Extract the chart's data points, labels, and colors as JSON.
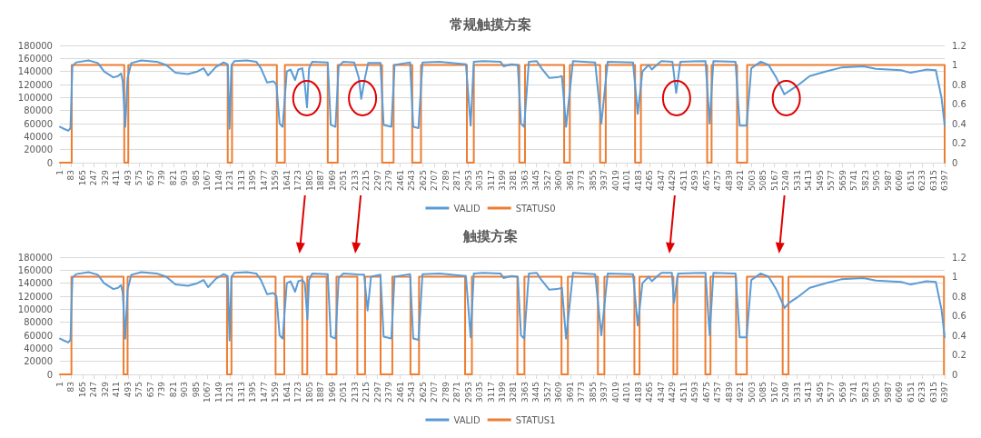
{
  "chart_data": [
    {
      "type": "line",
      "title": "常规触摸方案",
      "xlim": [
        1,
        6397
      ],
      "xticks": [
        1,
        83,
        165,
        247,
        329,
        411,
        493,
        575,
        657,
        739,
        821,
        903,
        985,
        1067,
        1149,
        1231,
        1313,
        1395,
        1477,
        1559,
        1641,
        1723,
        1805,
        1887,
        1969,
        2051,
        2133,
        2215,
        2297,
        2379,
        2461,
        2543,
        2625,
        2707,
        2789,
        2871,
        2953,
        3035,
        3117,
        3199,
        3281,
        3363,
        3445,
        3527,
        3609,
        3691,
        3773,
        3855,
        3937,
        4019,
        4101,
        4183,
        4265,
        4347,
        4429,
        4511,
        4593,
        4675,
        4757,
        4839,
        4921,
        5003,
        5085,
        5167,
        5249,
        5331,
        5413,
        5495,
        5577,
        5659,
        5741,
        5823,
        5905,
        5987,
        6069,
        6151,
        6233,
        6315,
        6397
      ],
      "ylim": [
        0,
        180000
      ],
      "yticks": [
        0,
        20000,
        40000,
        60000,
        80000,
        100000,
        120000,
        140000,
        160000,
        180000
      ],
      "y2lim": [
        0,
        1.2
      ],
      "y2ticks": [
        0,
        0.2,
        0.4,
        0.6,
        0.8,
        1,
        1.2
      ],
      "grid": "y",
      "legend": "bottom",
      "marker": "none",
      "line_style": "solid",
      "series": [
        {
          "name": "VALID",
          "color": "#5b9bd5",
          "type": "line",
          "x": [
            1,
            30,
            61,
            77,
            91,
            118,
            208,
            275,
            320,
            387,
            421,
            443,
            455,
            473,
            490,
            517,
            589,
            700,
            769,
            836,
            926,
            994,
            1039,
            1072,
            1129,
            1185,
            1214,
            1227,
            1241,
            1263,
            1353,
            1420,
            1454,
            1499,
            1544,
            1566,
            1589,
            1611,
            1641,
            1668,
            1701,
            1724,
            1753,
            1771,
            1787,
            1802,
            1825,
            1937,
            1959,
            1993,
            2016,
            2049,
            2128,
            2162,
            2179,
            2206,
            2229,
            2318,
            2341,
            2397,
            2420,
            2532,
            2555,
            2593,
            2622,
            2745,
            2936,
            2970,
            2993,
            3060,
            3186,
            3208,
            3265,
            3311,
            3334,
            3357,
            3391,
            3448,
            3482,
            3539,
            3596,
            3630,
            3660,
            3710,
            3870,
            3915,
            3961,
            4144,
            4178,
            4212,
            4257,
            4280,
            4315,
            4349,
            4429,
            4456,
            4486,
            4668,
            4698,
            4725,
            4885,
            4915,
            4965,
            4999,
            5067,
            5124,
            5181,
            5238,
            5273,
            5330,
            5421,
            5535,
            5649,
            5809,
            5900,
            6082,
            6151,
            6265,
            6333,
            6374,
            6397
          ],
          "values": [
            55000,
            52000,
            49000,
            53000,
            148000,
            154000,
            157000,
            153000,
            140000,
            131000,
            133000,
            137000,
            125000,
            55000,
            130000,
            153000,
            157000,
            155000,
            150000,
            138000,
            136000,
            140000,
            145000,
            134000,
            147000,
            154000,
            151000,
            52000,
            150000,
            156000,
            157000,
            155000,
            145000,
            123000,
            125000,
            120000,
            60000,
            55000,
            140000,
            143000,
            127000,
            143000,
            145000,
            120000,
            85000,
            145000,
            155000,
            154000,
            58000,
            55000,
            148000,
            155000,
            154000,
            130000,
            98000,
            130000,
            153000,
            153000,
            58000,
            55000,
            150000,
            154000,
            55000,
            53000,
            154000,
            155000,
            151000,
            57000,
            155000,
            156000,
            155000,
            148000,
            151000,
            150000,
            60000,
            55000,
            155000,
            156000,
            145000,
            130000,
            131000,
            133000,
            55000,
            156000,
            154000,
            60000,
            155000,
            154000,
            75000,
            140000,
            150000,
            143000,
            150000,
            156000,
            155000,
            107000,
            155000,
            156000,
            60000,
            156000,
            155000,
            57000,
            57000,
            145000,
            155000,
            150000,
            130000,
            105000,
            110000,
            118000,
            133000,
            140000,
            146000,
            148000,
            144000,
            142000,
            138000,
            143000,
            142000,
            100000,
            57000
          ]
        },
        {
          "name": "STATUS0",
          "color": "#ed7d31",
          "type": "step",
          "axis": "y2",
          "x": [
            1,
            86,
            466,
            495,
            1214,
            1245,
            1569,
            1627,
            1937,
            2009,
            2330,
            2413,
            2548,
            2611,
            2943,
            2993,
            3322,
            3363,
            3646,
            3687,
            3906,
            3947,
            4159,
            4201,
            4680,
            4712,
            4896,
            4969,
            6397
          ],
          "values": [
            0,
            1,
            0,
            1,
            0,
            1,
            0,
            1,
            0,
            1,
            0,
            1,
            0,
            1,
            0,
            1,
            0,
            1,
            0,
            1,
            0,
            1,
            0,
            1,
            0,
            1,
            0,
            1,
            0
          ]
        }
      ]
    },
    {
      "type": "line",
      "title": "触摸方案",
      "xlim": [
        1,
        6397
      ],
      "xticks": [
        1,
        83,
        165,
        247,
        329,
        411,
        493,
        575,
        657,
        739,
        821,
        903,
        985,
        1067,
        1149,
        1231,
        1313,
        1395,
        1477,
        1559,
        1641,
        1723,
        1805,
        1887,
        1969,
        2051,
        2133,
        2215,
        2297,
        2379,
        2461,
        2543,
        2625,
        2707,
        2789,
        2871,
        2953,
        3035,
        3117,
        3199,
        3281,
        3363,
        3445,
        3527,
        3609,
        3691,
        3773,
        3855,
        3937,
        4019,
        4101,
        4183,
        4265,
        4347,
        4429,
        4511,
        4593,
        4675,
        4757,
        4839,
        4921,
        5003,
        5085,
        5167,
        5249,
        5331,
        5413,
        5495,
        5577,
        5659,
        5741,
        5823,
        5905,
        5987,
        6069,
        6151,
        6233,
        6315,
        6397
      ],
      "ylim": [
        0,
        180000
      ],
      "yticks": [
        0,
        20000,
        40000,
        60000,
        80000,
        100000,
        120000,
        140000,
        160000,
        180000
      ],
      "y2lim": [
        0,
        1.2
      ],
      "y2ticks": [
        0,
        0.2,
        0.4,
        0.6,
        0.8,
        1,
        1.2
      ],
      "grid": "y",
      "legend": "bottom",
      "marker": "none",
      "line_style": "solid",
      "series": [
        {
          "name": "VALID",
          "color": "#5b9bd5",
          "type": "line",
          "x": [
            1,
            30,
            61,
            77,
            91,
            118,
            208,
            275,
            320,
            387,
            421,
            443,
            455,
            473,
            490,
            517,
            589,
            700,
            769,
            836,
            926,
            994,
            1039,
            1072,
            1129,
            1185,
            1214,
            1227,
            1241,
            1263,
            1353,
            1420,
            1454,
            1499,
            1544,
            1566,
            1589,
            1611,
            1641,
            1668,
            1701,
            1724,
            1753,
            1771,
            1790,
            1802,
            1825,
            1937,
            1959,
            1993,
            2016,
            2049,
            2128,
            2162,
            2200,
            2225,
            2250,
            2318,
            2341,
            2397,
            2420,
            2532,
            2555,
            2593,
            2622,
            2745,
            2936,
            2970,
            2993,
            3060,
            3186,
            3208,
            3265,
            3311,
            3334,
            3357,
            3391,
            3448,
            3482,
            3539,
            3596,
            3630,
            3660,
            3710,
            3870,
            3915,
            3961,
            4144,
            4178,
            4212,
            4257,
            4280,
            4315,
            4349,
            4425,
            4440,
            4470,
            4668,
            4698,
            4725,
            4885,
            4915,
            4965,
            4999,
            5067,
            5124,
            5181,
            5240,
            5273,
            5330,
            5421,
            5535,
            5649,
            5809,
            5900,
            6082,
            6151,
            6265,
            6333,
            6374,
            6397
          ],
          "values": [
            55000,
            52000,
            49000,
            53000,
            148000,
            154000,
            157000,
            153000,
            140000,
            131000,
            133000,
            137000,
            125000,
            55000,
            130000,
            153000,
            157000,
            155000,
            150000,
            138000,
            136000,
            140000,
            145000,
            134000,
            147000,
            154000,
            151000,
            52000,
            150000,
            156000,
            157000,
            155000,
            145000,
            123000,
            125000,
            120000,
            60000,
            55000,
            140000,
            143000,
            127000,
            143000,
            145000,
            140000,
            85000,
            145000,
            155000,
            154000,
            58000,
            55000,
            148000,
            155000,
            154000,
            153000,
            153000,
            98000,
            150000,
            153000,
            58000,
            55000,
            150000,
            154000,
            55000,
            53000,
            154000,
            155000,
            151000,
            57000,
            155000,
            156000,
            155000,
            148000,
            151000,
            150000,
            60000,
            55000,
            155000,
            156000,
            145000,
            130000,
            131000,
            133000,
            55000,
            156000,
            154000,
            60000,
            155000,
            154000,
            75000,
            140000,
            150000,
            143000,
            150000,
            156000,
            156000,
            110000,
            155000,
            156000,
            60000,
            156000,
            155000,
            57000,
            57000,
            145000,
            155000,
            150000,
            130000,
            102000,
            110000,
            118000,
            133000,
            140000,
            146000,
            148000,
            144000,
            142000,
            138000,
            143000,
            142000,
            100000,
            57000
          ]
        },
        {
          "name": "STATUS1",
          "color": "#ed7d31",
          "type": "step",
          "axis": "y2",
          "x": [
            1,
            84,
            461,
            490,
            1209,
            1241,
            1560,
            1623,
            1753,
            1789,
            1929,
            2000,
            2151,
            2207,
            2319,
            2404,
            2535,
            2597,
            2930,
            2979,
            3308,
            3359,
            3627,
            3673,
            3890,
            3937,
            4154,
            4191,
            4436,
            4463,
            4667,
            4704,
            4889,
            4967,
            5226,
            5268,
            6392
          ],
          "values": [
            0,
            1,
            0,
            1,
            0,
            1,
            0,
            1,
            0,
            1,
            0,
            1,
            0,
            1,
            0,
            1,
            0,
            1,
            0,
            1,
            0,
            1,
            0,
            1,
            0,
            1,
            0,
            1,
            0,
            1,
            0,
            1,
            0,
            1,
            0,
            1,
            0
          ]
        }
      ]
    }
  ]
}
